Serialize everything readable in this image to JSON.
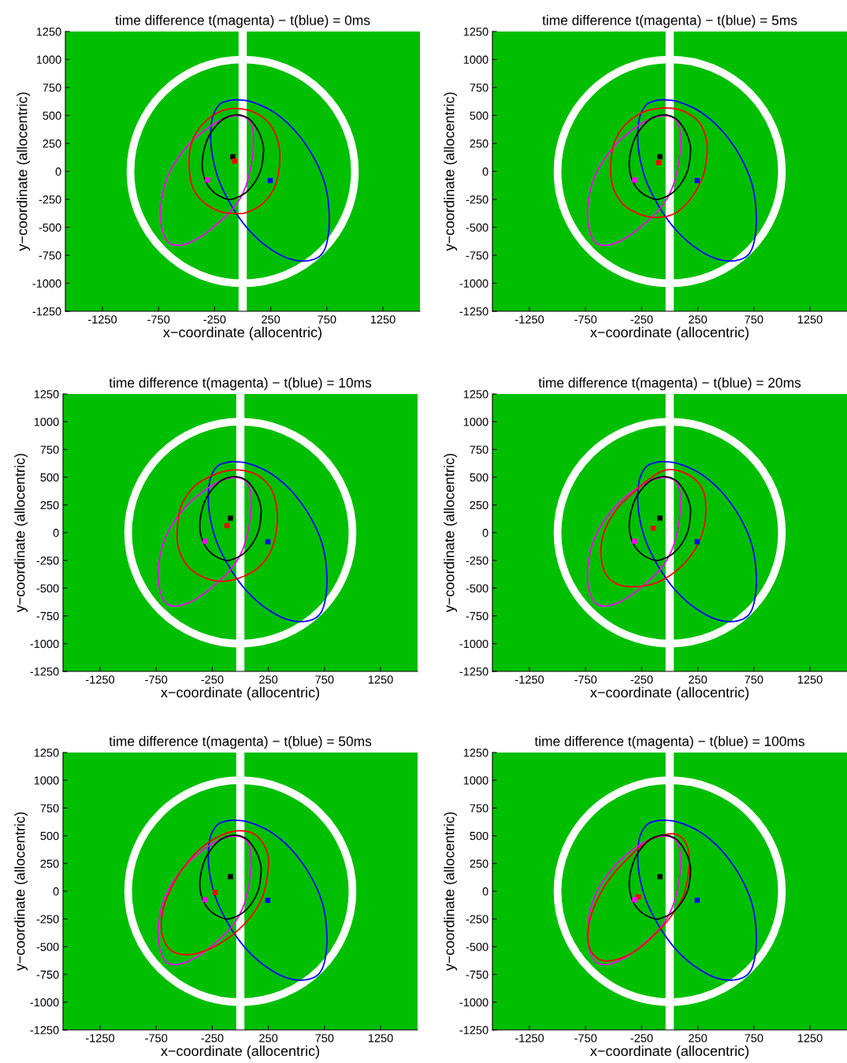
{
  "chart_data": [
    {
      "type": "scatter",
      "marker": "square",
      "title": "time difference t(magenta) − t(blue) = 0ms",
      "xlabel": "x−coordinate (allocentric)",
      "ylabel": "y−coordinate (allocentric)",
      "xlim": [
        -1580,
        1580
      ],
      "ylim": [
        -1250,
        1250
      ],
      "xticks": [
        -1250,
        -750,
        -250,
        250,
        750,
        1250
      ],
      "yticks": [
        -1250,
        -1000,
        -750,
        -500,
        -250,
        0,
        250,
        500,
        750,
        1000,
        1250
      ],
      "grid": false,
      "legend": false,
      "ref_lines": [
        {
          "axis": "x",
          "value": 0,
          "color": "#ffffff"
        }
      ],
      "series": [
        {
          "color": "#000000",
          "x": [
            -88
          ],
          "values": [
            131
          ]
        },
        {
          "color": "#ff0000",
          "x": [
            -72
          ],
          "values": [
            92
          ]
        },
        {
          "color": "#ff00ff",
          "x": [
            -313
          ],
          "values": [
            -77
          ]
        },
        {
          "color": "#0000ff",
          "x": [
            245
          ],
          "values": [
            -82
          ]
        }
      ]
    },
    {
      "type": "scatter",
      "marker": "square",
      "title": "time difference t(magenta) − t(blue) = 5ms",
      "xlabel": "x−coordinate (allocentric)",
      "ylabel": "y−coordinate (allocentric)",
      "xlim": [
        -1580,
        1580
      ],
      "ylim": [
        -1250,
        1250
      ],
      "xticks": [
        -1250,
        -750,
        -250,
        250,
        750,
        1250
      ],
      "yticks": [
        -1250,
        -1000,
        -750,
        -500,
        -250,
        0,
        250,
        500,
        750,
        1000,
        1250
      ],
      "grid": false,
      "legend": false,
      "ref_lines": [
        {
          "axis": "x",
          "value": 0,
          "color": "#ffffff"
        }
      ],
      "series": [
        {
          "color": "#000000",
          "x": [
            -88
          ],
          "values": [
            131
          ]
        },
        {
          "color": "#ff0000",
          "x": [
            -98
          ],
          "values": [
            78
          ]
        },
        {
          "color": "#ff00ff",
          "x": [
            -313
          ],
          "values": [
            -77
          ]
        },
        {
          "color": "#0000ff",
          "x": [
            245
          ],
          "values": [
            -82
          ]
        }
      ]
    },
    {
      "type": "scatter",
      "marker": "square",
      "title": "time difference t(magenta) − t(blue) = 10ms",
      "xlabel": "x−coordinate (allocentric)",
      "ylabel": "y−coordinate (allocentric)",
      "xlim": [
        -1580,
        1580
      ],
      "ylim": [
        -1250,
        1250
      ],
      "xticks": [
        -1250,
        -750,
        -250,
        250,
        750,
        1250
      ],
      "yticks": [
        -1250,
        -1000,
        -750,
        -500,
        -250,
        0,
        250,
        500,
        750,
        1000,
        1250
      ],
      "grid": false,
      "legend": false,
      "ref_lines": [
        {
          "axis": "x",
          "value": 0,
          "color": "#ffffff"
        }
      ],
      "series": [
        {
          "color": "#000000",
          "x": [
            -88
          ],
          "values": [
            131
          ]
        },
        {
          "color": "#ff0000",
          "x": [
            -118
          ],
          "values": [
            64
          ]
        },
        {
          "color": "#ff00ff",
          "x": [
            -313
          ],
          "values": [
            -77
          ]
        },
        {
          "color": "#0000ff",
          "x": [
            245
          ],
          "values": [
            -82
          ]
        }
      ]
    },
    {
      "type": "scatter",
      "marker": "square",
      "title": "time difference t(magenta) − t(blue) = 20ms",
      "xlabel": "x−coordinate (allocentric)",
      "ylabel": "y−coordinate (allocentric)",
      "xlim": [
        -1580,
        1580
      ],
      "ylim": [
        -1250,
        1250
      ],
      "xticks": [
        -1250,
        -750,
        -250,
        250,
        750,
        1250
      ],
      "yticks": [
        -1250,
        -1000,
        -750,
        -500,
        -250,
        0,
        250,
        500,
        750,
        1000,
        1250
      ],
      "grid": false,
      "legend": false,
      "ref_lines": [
        {
          "axis": "x",
          "value": 0,
          "color": "#ffffff"
        }
      ],
      "series": [
        {
          "color": "#000000",
          "x": [
            -88
          ],
          "values": [
            131
          ]
        },
        {
          "color": "#ff0000",
          "x": [
            -147
          ],
          "values": [
            40
          ]
        },
        {
          "color": "#ff00ff",
          "x": [
            -313
          ],
          "values": [
            -77
          ]
        },
        {
          "color": "#0000ff",
          "x": [
            245
          ],
          "values": [
            -82
          ]
        }
      ]
    },
    {
      "type": "scatter",
      "marker": "square",
      "title": "time difference t(magenta) − t(blue) = 50ms",
      "xlabel": "x−coordinate (allocentric)",
      "ylabel": "y−coordinate (allocentric)",
      "xlim": [
        -1580,
        1580
      ],
      "ylim": [
        -1250,
        1250
      ],
      "xticks": [
        -1250,
        -750,
        -250,
        250,
        750,
        1250
      ],
      "yticks": [
        -1250,
        -1000,
        -750,
        -500,
        -250,
        0,
        250,
        500,
        750,
        1000,
        1250
      ],
      "grid": false,
      "legend": false,
      "ref_lines": [
        {
          "axis": "x",
          "value": 0,
          "color": "#ffffff"
        }
      ],
      "series": [
        {
          "color": "#000000",
          "x": [
            -88
          ],
          "values": [
            131
          ]
        },
        {
          "color": "#ff0000",
          "x": [
            -224
          ],
          "values": [
            -12
          ]
        },
        {
          "color": "#ff00ff",
          "x": [
            -313
          ],
          "values": [
            -77
          ]
        },
        {
          "color": "#0000ff",
          "x": [
            245
          ],
          "values": [
            -82
          ]
        }
      ]
    },
    {
      "type": "scatter",
      "marker": "square",
      "title": "time difference t(magenta) − t(blue) = 100ms",
      "xlabel": "x−coordinate (allocentric)",
      "ylabel": "y−coordinate (allocentric)",
      "xlim": [
        -1580,
        1580
      ],
      "ylim": [
        -1250,
        1250
      ],
      "xticks": [
        -1250,
        -750,
        -250,
        250,
        750,
        1250
      ],
      "yticks": [
        -1250,
        -1000,
        -750,
        -500,
        -250,
        0,
        250,
        500,
        750,
        1000,
        1250
      ],
      "grid": false,
      "legend": false,
      "ref_lines": [
        {
          "axis": "x",
          "value": 0,
          "color": "#ffffff"
        }
      ],
      "series": [
        {
          "color": "#000000",
          "x": [
            -88
          ],
          "values": [
            131
          ]
        },
        {
          "color": "#ff0000",
          "x": [
            -280
          ],
          "values": [
            -52
          ]
        },
        {
          "color": "#ff00ff",
          "x": [
            -313
          ],
          "values": [
            -77
          ]
        },
        {
          "color": "#0000ff",
          "x": [
            245
          ],
          "values": [
            -82
          ]
        }
      ]
    }
  ]
}
